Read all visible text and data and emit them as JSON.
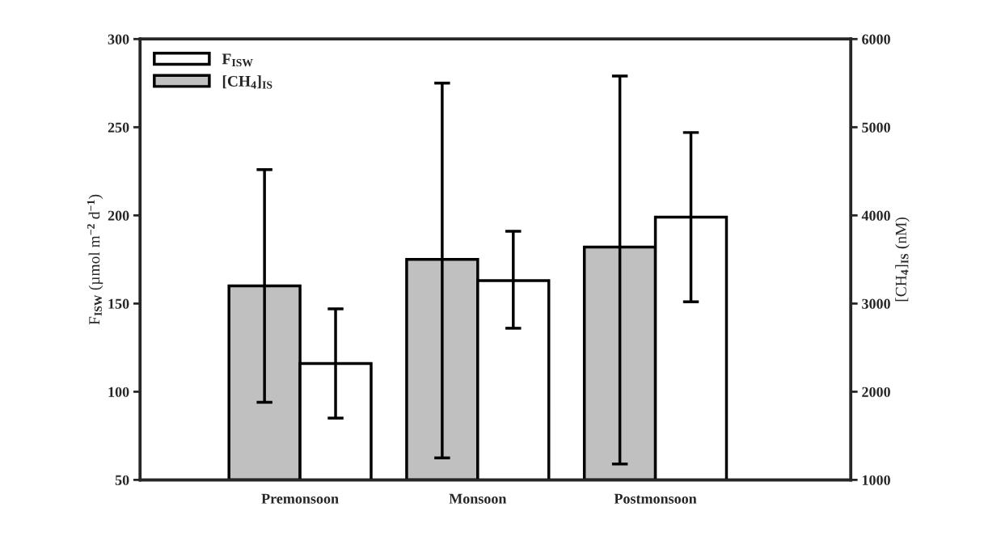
{
  "chart_data": {
    "type": "bar",
    "categories": [
      "Premonsoon",
      "Monsoon",
      "Postmonsoon"
    ],
    "ylabel": "F$_{ISW}$ (µmol m$^{−2}$ d$^{−1}$)",
    "y2label": "[CH$_{4}$]$_{IS}$ (nM)",
    "series": [
      {
        "name": "[CH$_{4}$]$_{IS}$",
        "color": "#c0c0c0",
        "axis": "y2",
        "values": [
          3200,
          3500,
          3640
        ],
        "errors": [
          [
            1880,
            4520
          ],
          [
            1250,
            5500
          ],
          [
            1180,
            5580
          ]
        ]
      },
      {
        "name": "F$_{ISW}$",
        "color": "#ffffff",
        "values": [
          116,
          163,
          199
        ],
        "errors": [
          [
            85,
            147
          ],
          [
            136,
            191
          ],
          [
            151,
            247
          ]
        ]
      }
    ],
    "ylim": [
      50,
      300
    ],
    "yticks": [
      50,
      100,
      150,
      200,
      250,
      300
    ],
    "y2lim": [
      1000,
      6000
    ],
    "y2ticks": [
      1000,
      2000,
      3000,
      4000,
      5000,
      6000
    ],
    "legend": "top left",
    "grid": false
  }
}
